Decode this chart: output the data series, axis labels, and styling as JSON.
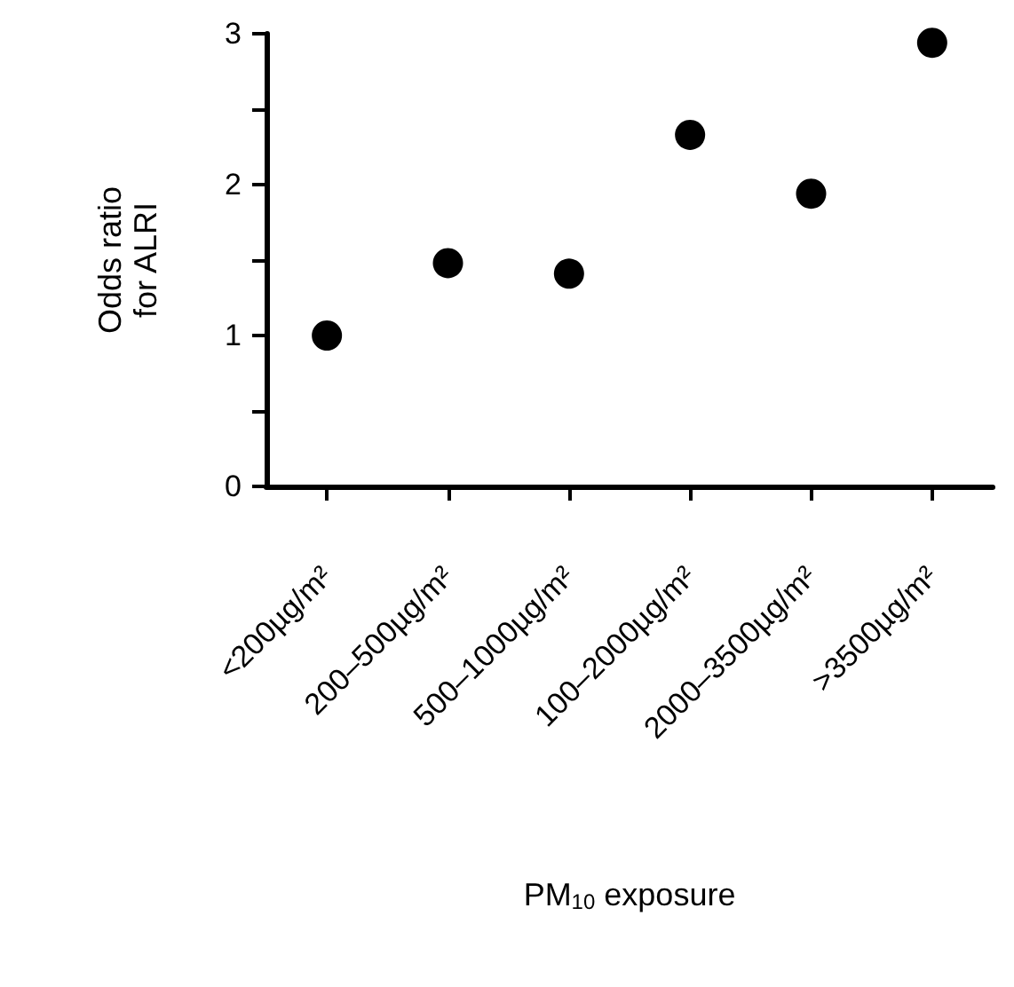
{
  "chart_data": {
    "type": "scatter",
    "xlabel": "PM$_{10}$ exposure",
    "ylabel": "Odds ratio\nfor ALRI",
    "categories": [
      "<200µg/m²",
      "200–500µg/m²",
      "500–1000µg/m²",
      "100–2000µg/m²",
      "2000–3500µg/m²",
      ">3500µg/m²"
    ],
    "series": [
      {
        "color": "#000000",
        "values": [
          1.0,
          1.48,
          1.41,
          2.33,
          1.94,
          2.94
        ]
      }
    ],
    "ylim": [
      0,
      3
    ],
    "yticks": [
      0,
      {
        "value": 0.5,
        "label": null
      },
      1,
      {
        "value": 1.5,
        "label": null
      },
      2,
      {
        "value": 2.5,
        "label": null
      },
      3
    ],
    "marker": "circle",
    "grid": false
  }
}
